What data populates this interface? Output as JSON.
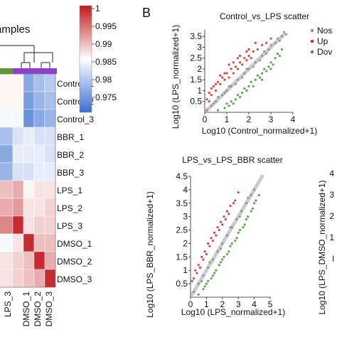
{
  "heatmap": {
    "title": "amples",
    "row_labels": [
      "Control_1",
      "Control_2",
      "Control_3",
      "BBR_1",
      "BBR_2",
      "BBR_3",
      "LPS_1",
      "LPS_2",
      "LPS_3",
      "DMSO_1",
      "DMSO_2",
      "DMSO_3"
    ],
    "col_labels": [
      "LPS_3",
      "DMSO_1",
      "DMSO_2",
      "DMSO_3"
    ],
    "colorbar": {
      "ticks": [
        "1",
        "0.995",
        "0.99",
        "0.985",
        "0.98",
        "0.975"
      ],
      "min": 0.975,
      "max": 1.0,
      "low_color": "#3a6fd0",
      "mid_color": "#ffffff",
      "high_color": "#c0191f"
    },
    "group_bar_colors": [
      "#5b9a2e",
      "#8e3fd0"
    ]
  },
  "panel_letter": "B",
  "scatter1": {
    "title": "Control_vs_LPS scatter",
    "xlabel": "Log10 (Control_normalized+1)",
    "ylabel": "Log10 (LPS_normalized+1)",
    "xticks": [
      "0",
      "1",
      "2",
      "3",
      "4"
    ],
    "yticks": [
      "0.5",
      "1",
      "1.5",
      "2",
      "2.5",
      "3",
      "3.5"
    ],
    "legend": [
      {
        "label": "Nos",
        "color": "#8c8c8c"
      },
      {
        "label": "Up",
        "color": "#e02020"
      },
      {
        "label": "Dov",
        "color": "#3a9a2a"
      }
    ]
  },
  "scatter2": {
    "title": "LPS_vs_LPS_BBR scatter",
    "xlabel": "Log10 (LPS_normalized+1)",
    "ylabel": "Log10 (LPS_BBR_normalized+1)",
    "xticks": [
      "0",
      "1",
      "2",
      "3",
      "4",
      "5"
    ],
    "yticks": [
      "0.5",
      "1",
      "1.5",
      "2",
      "2.5",
      "3",
      "3.5",
      "4",
      "4.5"
    ]
  },
  "scatter3": {
    "ylabel": "Log10 (LPS_DMSO_normalized+1)",
    "yticks": [
      "4",
      "3",
      "2",
      "1",
      "l"
    ]
  },
  "chart_data": [
    {
      "type": "heatmap",
      "rows": [
        "Control_1",
        "Control_2",
        "Control_3",
        "BBR_1",
        "BBR_2",
        "BBR_3",
        "LPS_1",
        "LPS_2",
        "LPS_3",
        "DMSO_1",
        "DMSO_2",
        "DMSO_3"
      ],
      "columns": [
        "",
        "LPS_3",
        "DMSO_1",
        "DMSO_2",
        "DMSO_3"
      ],
      "values": [
        [
          0.988,
          0.988,
          0.98,
          0.982,
          0.983
        ],
        [
          0.988,
          0.988,
          0.979,
          0.981,
          0.982
        ],
        [
          0.987,
          0.987,
          0.978,
          0.98,
          0.981
        ],
        [
          0.982,
          0.985,
          0.986,
          0.985,
          0.985
        ],
        [
          0.98,
          0.986,
          0.986,
          0.986,
          0.985
        ],
        [
          0.981,
          0.985,
          0.985,
          0.986,
          0.986
        ],
        [
          0.991,
          0.992,
          0.988,
          0.989,
          0.989
        ],
        [
          0.992,
          0.993,
          0.989,
          0.989,
          0.99
        ],
        [
          0.994,
          0.999,
          0.989,
          0.99,
          0.99
        ],
        [
          0.987,
          0.989,
          0.999,
          0.991,
          0.991
        ],
        [
          0.989,
          0.99,
          0.991,
          0.999,
          0.992
        ],
        [
          0.989,
          0.99,
          0.991,
          0.992,
          0.999
        ]
      ],
      "colorbar_range": [
        0.975,
        1.0
      ]
    },
    {
      "type": "scatter",
      "title": "Control_vs_LPS scatter",
      "xlabel": "Log10 (Control_normalized+1)",
      "ylabel": "Log10 (LPS_normalized+1)",
      "xlim": [
        0,
        4
      ],
      "ylim": [
        0,
        3.8
      ],
      "series": [
        {
          "name": "Nos",
          "color": "#8c8c8c",
          "points": [
            [
              0.1,
              0.1
            ],
            [
              0.3,
              0.3
            ],
            [
              0.5,
              0.5
            ],
            [
              0.8,
              0.8
            ],
            [
              1.0,
              1.0
            ],
            [
              1.2,
              1.2
            ],
            [
              1.5,
              1.5
            ],
            [
              1.8,
              1.8
            ],
            [
              2.0,
              2.0
            ],
            [
              2.3,
              2.3
            ],
            [
              2.6,
              2.6
            ],
            [
              2.9,
              2.9
            ],
            [
              3.2,
              3.2
            ],
            [
              3.5,
              3.5
            ],
            [
              3.7,
              3.6
            ],
            [
              1.1,
              1.2
            ],
            [
              1.7,
              1.6
            ],
            [
              2.2,
              2.1
            ],
            [
              2.7,
              2.8
            ],
            [
              3.0,
              3.1
            ],
            [
              3.4,
              3.3
            ],
            [
              0.6,
              0.7
            ],
            [
              1.4,
              1.3
            ],
            [
              2.5,
              2.4
            ],
            [
              3.6,
              3.7
            ],
            [
              0.4,
              0.4
            ],
            [
              1.9,
              2.0
            ],
            [
              2.8,
              2.7
            ],
            [
              3.3,
              3.4
            ],
            [
              0.9,
              0.9
            ]
          ]
        },
        {
          "name": "Up",
          "color": "#e02020",
          "points": [
            [
              0.1,
              0.6
            ],
            [
              0.2,
              0.9
            ],
            [
              0.3,
              0.8
            ],
            [
              0.4,
              1.2
            ],
            [
              0.5,
              1.0
            ],
            [
              0.6,
              1.4
            ],
            [
              0.7,
              1.3
            ],
            [
              0.8,
              1.6
            ],
            [
              0.9,
              1.5
            ],
            [
              1.0,
              1.8
            ],
            [
              1.1,
              1.6
            ],
            [
              1.2,
              2.0
            ],
            [
              1.3,
              1.8
            ],
            [
              1.4,
              2.1
            ],
            [
              1.5,
              2.0
            ],
            [
              1.6,
              2.3
            ],
            [
              1.7,
              2.2
            ],
            [
              1.8,
              2.5
            ],
            [
              1.9,
              2.4
            ],
            [
              2.0,
              2.6
            ],
            [
              2.1,
              2.5
            ],
            [
              2.2,
              2.8
            ],
            [
              2.4,
              2.9
            ],
            [
              2.6,
              3.1
            ],
            [
              2.8,
              3.2
            ],
            [
              3.0,
              3.4
            ],
            [
              0.2,
              0.5
            ],
            [
              0.5,
              1.3
            ],
            [
              0.9,
              1.8
            ],
            [
              1.3,
              2.3
            ],
            [
              1.6,
              2.6
            ],
            [
              2.0,
              2.9
            ],
            [
              2.3,
              3.2
            ],
            [
              0.3,
              1.1
            ],
            [
              0.7,
              1.7
            ],
            [
              1.1,
              2.2
            ],
            [
              1.5,
              2.5
            ],
            [
              1.9,
              2.8
            ]
          ]
        },
        {
          "name": "Dov",
          "color": "#3a9a2a",
          "points": [
            [
              0.6,
              0.1
            ],
            [
              0.9,
              0.2
            ],
            [
              1.0,
              0.4
            ],
            [
              1.2,
              0.5
            ],
            [
              1.4,
              0.6
            ],
            [
              1.5,
              0.8
            ],
            [
              1.7,
              0.9
            ],
            [
              1.8,
              1.1
            ],
            [
              2.0,
              1.2
            ],
            [
              2.1,
              1.4
            ],
            [
              2.3,
              1.5
            ],
            [
              2.4,
              1.7
            ],
            [
              2.6,
              1.8
            ],
            [
              2.7,
              2.0
            ],
            [
              2.9,
              2.1
            ],
            [
              3.0,
              2.3
            ],
            [
              3.2,
              2.5
            ],
            [
              3.3,
              2.7
            ],
            [
              3.5,
              2.9
            ],
            [
              1.1,
              0.3
            ],
            [
              1.6,
              0.7
            ],
            [
              2.2,
              1.2
            ],
            [
              2.5,
              1.6
            ],
            [
              2.8,
              1.9
            ],
            [
              3.1,
              2.2
            ],
            [
              3.4,
              2.6
            ],
            [
              1.3,
              0.4
            ],
            [
              1.9,
              1.0
            ],
            [
              2.6,
              1.5
            ],
            [
              3.0,
              2.0
            ]
          ]
        }
      ]
    },
    {
      "type": "scatter",
      "title": "LPS_vs_LPS_BBR scatter",
      "xlabel": "Log10 (LPS_normalized+1)",
      "ylabel": "Log10 (LPS_BBR_normalized+1)",
      "xlim": [
        0,
        5
      ],
      "ylim": [
        0,
        4.5
      ],
      "series": [
        {
          "name": "Nos",
          "color": "#8c8c8c",
          "points": [
            [
              0.2,
              0.2
            ],
            [
              0.5,
              0.5
            ],
            [
              0.8,
              0.8
            ],
            [
              1.1,
              1.1
            ],
            [
              1.4,
              1.4
            ],
            [
              1.7,
              1.7
            ],
            [
              2.0,
              2.0
            ],
            [
              2.3,
              2.3
            ],
            [
              2.6,
              2.6
            ],
            [
              2.9,
              2.9
            ],
            [
              3.2,
              3.2
            ],
            [
              3.5,
              3.5
            ],
            [
              3.8,
              3.8
            ],
            [
              4.0,
              4.0
            ],
            [
              1.2,
              1.3
            ],
            [
              1.9,
              1.8
            ],
            [
              2.5,
              2.6
            ],
            [
              3.1,
              3.0
            ],
            [
              3.6,
              3.7
            ],
            [
              0.7,
              0.6
            ]
          ]
        },
        {
          "name": "Up",
          "color": "#e02020",
          "points": [
            [
              0.1,
              0.6
            ],
            [
              0.3,
              1.0
            ],
            [
              0.5,
              1.2
            ],
            [
              0.7,
              1.5
            ],
            [
              0.9,
              1.7
            ],
            [
              1.1,
              2.0
            ],
            [
              1.3,
              2.2
            ],
            [
              1.5,
              2.4
            ],
            [
              1.7,
              2.6
            ],
            [
              1.9,
              2.8
            ],
            [
              2.1,
              3.0
            ],
            [
              2.3,
              3.2
            ],
            [
              2.5,
              3.4
            ],
            [
              2.8,
              3.6
            ],
            [
              3.0,
              3.9
            ],
            [
              0.4,
              0.9
            ],
            [
              0.8,
              1.4
            ],
            [
              1.2,
              1.9
            ],
            [
              1.6,
              2.3
            ],
            [
              2.0,
              2.7
            ],
            [
              2.4,
              3.1
            ],
            [
              2.7,
              3.5
            ],
            [
              0.2,
              0.7
            ],
            [
              0.6,
              1.1
            ],
            [
              1.0,
              1.6
            ],
            [
              1.4,
              2.1
            ],
            [
              1.8,
              2.5
            ],
            [
              2.2,
              2.9
            ]
          ]
        },
        {
          "name": "Dov",
          "color": "#3a9a2a",
          "points": [
            [
              0.5,
              0.1
            ],
            [
              0.8,
              0.3
            ],
            [
              1.0,
              0.5
            ],
            [
              1.3,
              0.7
            ],
            [
              1.5,
              0.9
            ],
            [
              1.8,
              1.2
            ],
            [
              2.0,
              1.4
            ],
            [
              2.3,
              1.6
            ],
            [
              2.5,
              1.9
            ],
            [
              2.8,
              2.1
            ],
            [
              3.0,
              2.4
            ],
            [
              3.3,
              2.6
            ],
            [
              3.5,
              2.9
            ],
            [
              3.8,
              3.2
            ],
            [
              4.0,
              3.5
            ],
            [
              4.3,
              3.8
            ],
            [
              1.1,
              0.6
            ],
            [
              1.6,
              1.0
            ],
            [
              2.1,
              1.5
            ],
            [
              2.6,
              2.0
            ],
            [
              3.1,
              2.5
            ],
            [
              3.6,
              3.0
            ],
            [
              4.1,
              3.6
            ],
            [
              0.9,
              0.4
            ],
            [
              1.4,
              0.8
            ],
            [
              1.9,
              1.3
            ],
            [
              2.4,
              1.7
            ],
            [
              2.9,
              2.2
            ],
            [
              3.4,
              2.7
            ],
            [
              3.9,
              3.3
            ]
          ]
        }
      ]
    }
  ]
}
